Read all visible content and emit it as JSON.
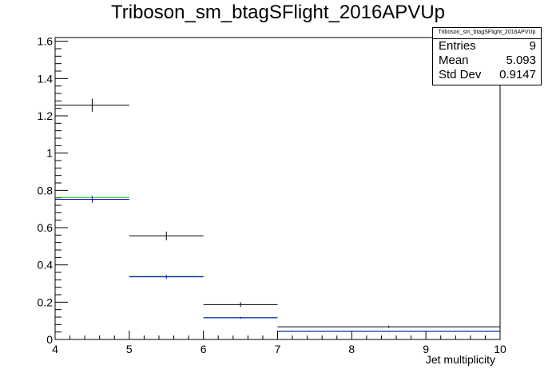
{
  "chart_data": {
    "type": "histogram",
    "title": "Triboson_sm_btagSFlight_2016APVUp",
    "xlabel": "Jet multiplicity",
    "ylabel": "",
    "xlim": [
      4,
      10
    ],
    "ylim": [
      0,
      1.62
    ],
    "x_ticks": [
      4,
      5,
      6,
      7,
      8,
      9,
      10
    ],
    "y_ticks": [
      0,
      0.2,
      0.4,
      0.6,
      0.8,
      1,
      1.2,
      1.4,
      1.6
    ],
    "grid": false,
    "series": [
      {
        "color": "#000000",
        "style": "errorbars",
        "bins": [
          {
            "x_low": 4,
            "x_high": 5,
            "y": 1.257,
            "err": 0.035
          },
          {
            "x_low": 5,
            "x_high": 6,
            "y": 0.556,
            "err": 0.023
          },
          {
            "x_low": 6,
            "x_high": 7,
            "y": 0.187,
            "err": 0.013
          },
          {
            "x_low": 7,
            "x_high": 10,
            "y": 0.068,
            "err": 0.006
          }
        ]
      },
      {
        "color": "#00cc00",
        "style": "line",
        "bins": [
          {
            "x_low": 4,
            "x_high": 5,
            "y": 0.762
          },
          {
            "x_low": 5,
            "x_high": 6,
            "y": 0.338
          },
          {
            "x_low": 6,
            "x_high": 7,
            "y": 0.117
          },
          {
            "x_low": 7,
            "x_high": 10,
            "y": 0.045
          }
        ]
      },
      {
        "color": "#0000cc",
        "style": "errorbars",
        "bins": [
          {
            "x_low": 4,
            "x_high": 5,
            "y": 0.752,
            "err": 0.018
          },
          {
            "x_low": 5,
            "x_high": 6,
            "y": 0.336,
            "err": 0.01
          },
          {
            "x_low": 6,
            "x_high": 7,
            "y": 0.116,
            "err": 0.005
          },
          {
            "x_low": 7,
            "x_high": 10,
            "y": 0.044,
            "err": 0.003
          }
        ]
      }
    ]
  },
  "stats_box": {
    "name": "Triboson_sm_btagSFlight_2016APVUp",
    "entries_label": "Entries",
    "entries_value": "9",
    "mean_label": "Mean",
    "mean_value": "5.093",
    "stddev_label": "Std Dev",
    "stddev_value": "0.9147"
  }
}
